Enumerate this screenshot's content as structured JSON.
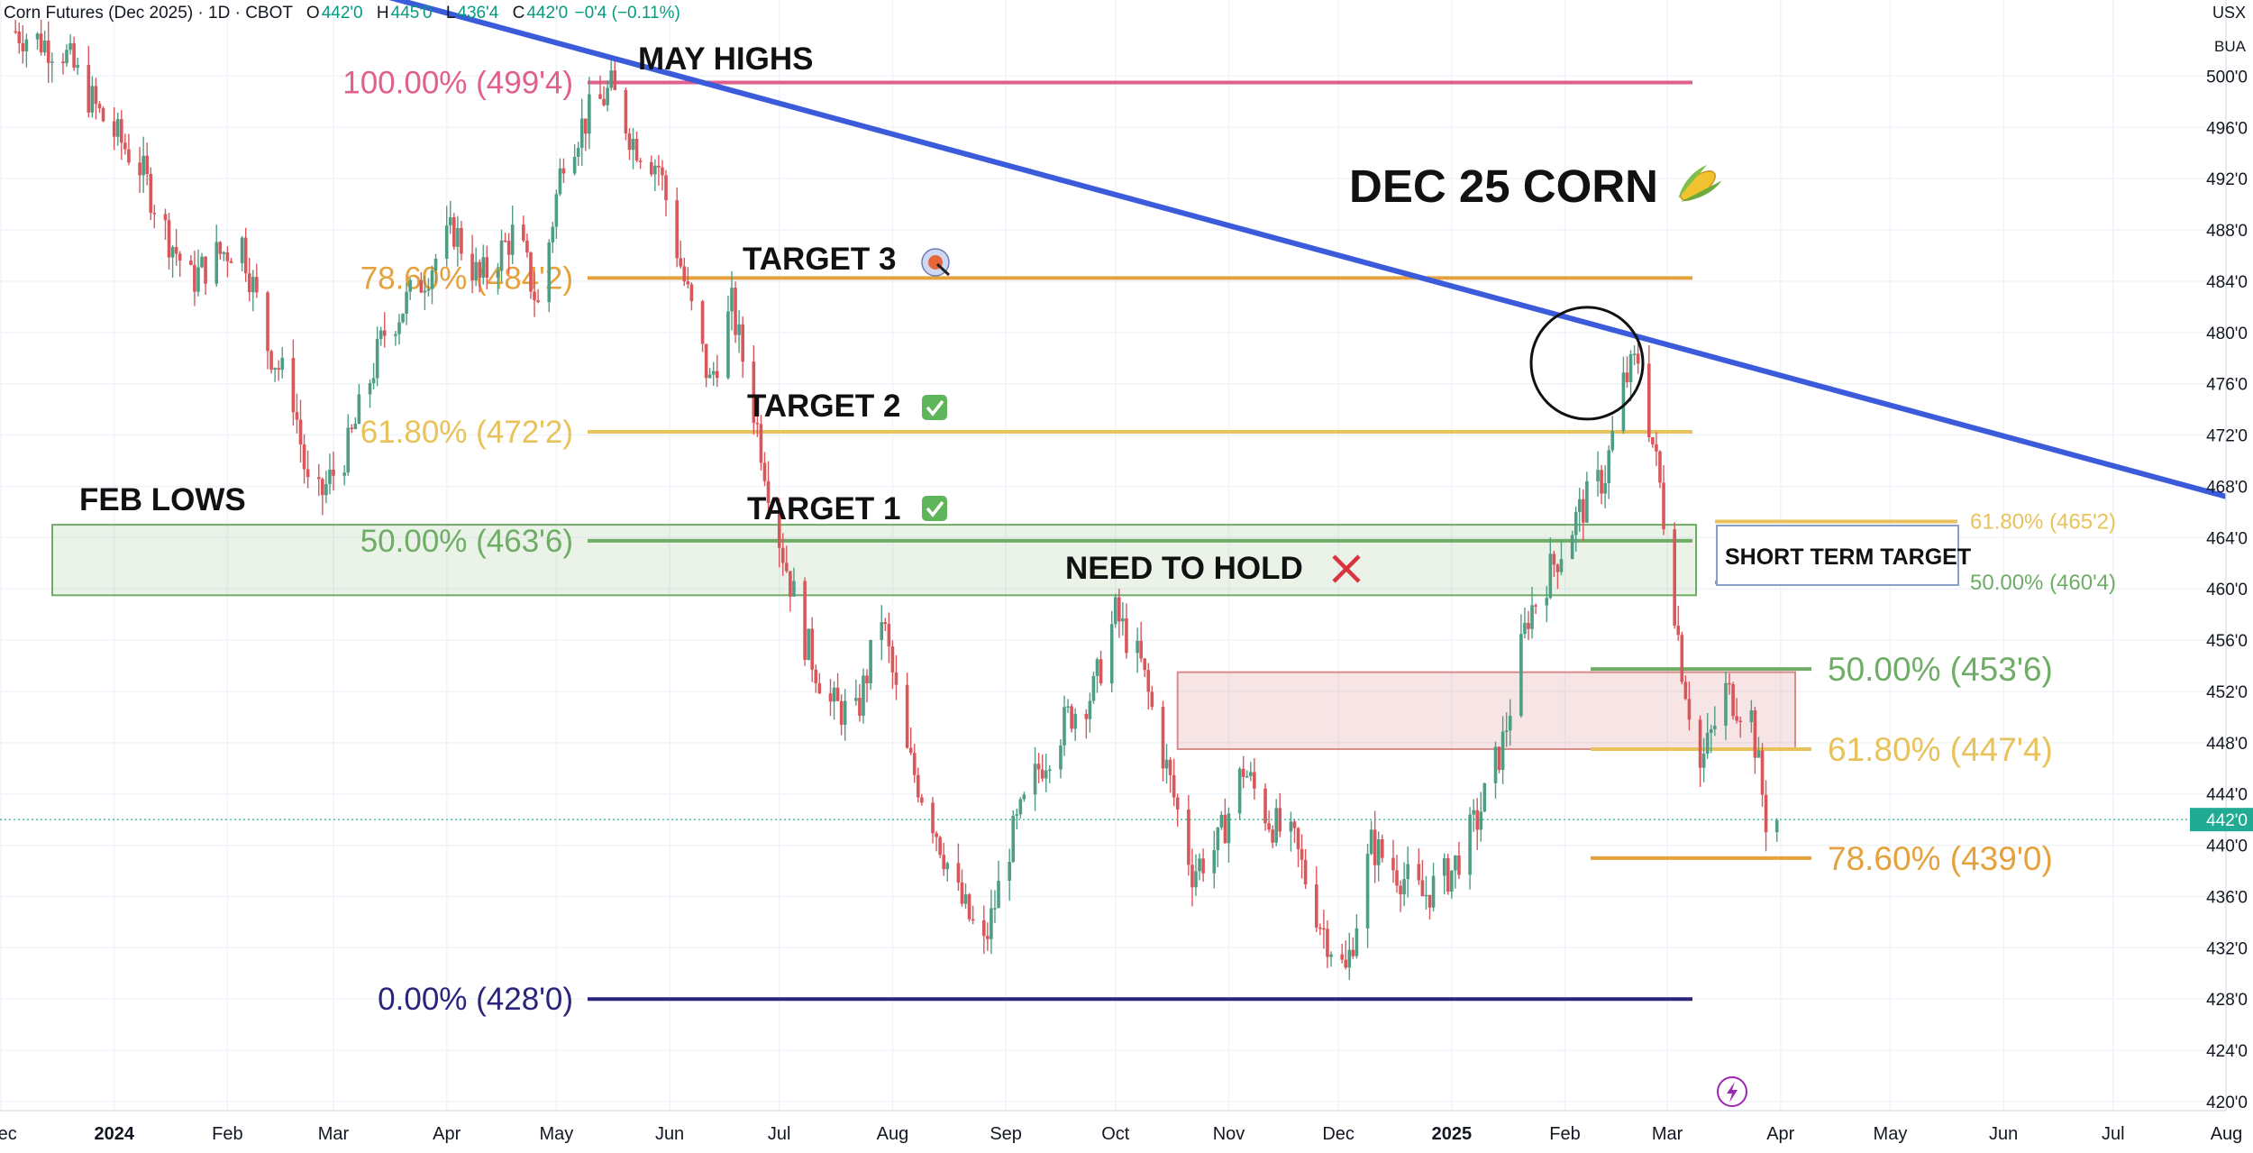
{
  "header": {
    "symbol_line": "Corn Futures (Dec 2025) · 1D · CBOT",
    "open_label": "O",
    "open_value": "442'0",
    "high_label": "H",
    "high_value": "445'0",
    "low_label": "L",
    "low_value": "436'4",
    "close_label": "C",
    "close_value": "442'0",
    "change": "−0'4 (−0.11%)"
  },
  "currency": "USX",
  "unit": "BUA",
  "chart_data": {
    "type": "candlestick",
    "title": "DEC 25 CORN",
    "title_icon": "corn-emoji",
    "ylim": [
      418,
      502
    ],
    "x_range": [
      "2023-12-01",
      "2025-08-10"
    ],
    "y_ticks": [
      "500'0",
      "496'0",
      "492'0",
      "488'0",
      "484'0",
      "480'0",
      "476'0",
      "472'0",
      "468'0",
      "464'0",
      "460'0",
      "456'0",
      "452'0",
      "448'0",
      "444'0",
      "440'0",
      "436'0",
      "432'0",
      "428'0",
      "424'0",
      "420'0"
    ],
    "y_tick_values": [
      500,
      496,
      492,
      488,
      484,
      480,
      476,
      472,
      468,
      464,
      460,
      456,
      452,
      448,
      444,
      440,
      436,
      432,
      428,
      424,
      420
    ],
    "x_ticks": [
      {
        "label": "Dec",
        "date": "2023-12-01",
        "bold": false
      },
      {
        "label": "2024",
        "date": "2024-01-01",
        "bold": true
      },
      {
        "label": "Feb",
        "date": "2024-02-01",
        "bold": false
      },
      {
        "label": "Mar",
        "date": "2024-03-01",
        "bold": false
      },
      {
        "label": "Apr",
        "date": "2024-04-01",
        "bold": false
      },
      {
        "label": "May",
        "date": "2024-05-01",
        "bold": false
      },
      {
        "label": "Jun",
        "date": "2024-06-01",
        "bold": false
      },
      {
        "label": "Jul",
        "date": "2024-07-01",
        "bold": false
      },
      {
        "label": "Aug",
        "date": "2024-08-01",
        "bold": false
      },
      {
        "label": "Sep",
        "date": "2024-09-01",
        "bold": false
      },
      {
        "label": "Oct",
        "date": "2024-10-01",
        "bold": false
      },
      {
        "label": "Nov",
        "date": "2024-11-01",
        "bold": false
      },
      {
        "label": "Dec",
        "date": "2024-12-01",
        "bold": false
      },
      {
        "label": "2025",
        "date": "2025-01-01",
        "bold": true
      },
      {
        "label": "Feb",
        "date": "2025-02-01",
        "bold": false
      },
      {
        "label": "Mar",
        "date": "2025-03-01",
        "bold": false
      },
      {
        "label": "Apr",
        "date": "2025-04-01",
        "bold": false
      },
      {
        "label": "May",
        "date": "2025-05-01",
        "bold": false
      },
      {
        "label": "Jun",
        "date": "2025-06-01",
        "bold": false
      },
      {
        "label": "Jul",
        "date": "2025-07-01",
        "bold": false
      },
      {
        "label": "Aug",
        "date": "2025-08-01",
        "bold": false
      }
    ],
    "last_price": {
      "label": "442'0",
      "value": 442,
      "color": "#22ab94"
    },
    "price_path": [
      [
        "2023-12-05",
        503.5
      ],
      [
        "2023-12-18",
        502
      ],
      [
        "2023-12-28",
        497
      ],
      [
        "2024-01-08",
        493
      ],
      [
        "2024-01-15",
        488
      ],
      [
        "2024-01-22",
        484
      ],
      [
        "2024-01-29",
        486
      ],
      [
        "2024-02-05",
        487
      ],
      [
        "2024-02-12",
        479
      ],
      [
        "2024-02-19",
        475
      ],
      [
        "2024-02-24",
        466
      ],
      [
        "2024-03-05",
        471
      ],
      [
        "2024-03-15",
        480
      ],
      [
        "2024-03-25",
        484
      ],
      [
        "2024-04-03",
        488
      ],
      [
        "2024-04-10",
        484
      ],
      [
        "2024-04-20",
        488
      ],
      [
        "2024-04-26",
        482
      ],
      [
        "2024-05-03",
        494
      ],
      [
        "2024-05-10",
        497
      ],
      [
        "2024-05-16",
        499
      ],
      [
        "2024-05-22",
        495
      ],
      [
        "2024-05-29",
        493
      ],
      [
        "2024-06-05",
        484
      ],
      [
        "2024-06-12",
        476
      ],
      [
        "2024-06-18",
        482
      ],
      [
        "2024-06-24",
        474
      ],
      [
        "2024-07-01",
        464
      ],
      [
        "2024-07-08",
        456
      ],
      [
        "2024-07-15",
        451
      ],
      [
        "2024-07-22",
        450
      ],
      [
        "2024-07-29",
        458
      ],
      [
        "2024-08-05",
        447
      ],
      [
        "2024-08-12",
        442
      ],
      [
        "2024-08-19",
        436
      ],
      [
        "2024-08-26",
        432
      ],
      [
        "2024-09-02",
        440
      ],
      [
        "2024-09-10",
        446
      ],
      [
        "2024-09-18",
        450
      ],
      [
        "2024-09-25",
        452
      ],
      [
        "2024-10-01",
        458
      ],
      [
        "2024-10-08",
        454
      ],
      [
        "2024-10-15",
        446
      ],
      [
        "2024-10-22",
        438
      ],
      [
        "2024-10-29",
        440
      ],
      [
        "2024-11-05",
        446
      ],
      [
        "2024-11-12",
        442
      ],
      [
        "2024-11-19",
        440
      ],
      [
        "2024-11-26",
        434
      ],
      [
        "2024-12-03",
        430
      ],
      [
        "2024-12-10",
        440
      ],
      [
        "2024-12-17",
        438
      ],
      [
        "2024-12-24",
        436
      ],
      [
        "2025-01-01",
        438
      ],
      [
        "2025-01-08",
        442
      ],
      [
        "2025-01-15",
        448
      ],
      [
        "2025-01-22",
        458
      ],
      [
        "2025-01-29",
        462
      ],
      [
        "2025-02-05",
        466
      ],
      [
        "2025-02-12",
        469
      ],
      [
        "2025-02-17",
        476
      ],
      [
        "2025-02-21",
        478
      ],
      [
        "2025-02-27",
        468
      ],
      [
        "2025-03-05",
        454
      ],
      [
        "2025-03-10",
        446
      ],
      [
        "2025-03-17",
        452
      ],
      [
        "2025-03-24",
        450
      ],
      [
        "2025-03-28",
        442
      ],
      [
        "2025-03-31",
        442
      ]
    ],
    "levels": [
      {
        "label": "100.00% (499'4)",
        "value": 499.5,
        "color": "#e05f8d",
        "label_side": "left"
      },
      {
        "label": "78.60% (484'2)",
        "value": 484.25,
        "color": "#e5a23c",
        "label_side": "left"
      },
      {
        "label": "61.80% (472'2)",
        "value": 472.25,
        "color": "#e8c25a",
        "label_side": "left"
      },
      {
        "label": "50.00% (463'6)",
        "value": 463.75,
        "color": "#6fad66",
        "label_side": "left"
      },
      {
        "label": "0.00% (428'0)",
        "value": 428.0,
        "color": "#2a257a",
        "label_side": "left"
      },
      {
        "label": "50.00% (453'6)",
        "value": 453.75,
        "color": "#6fad66",
        "label_side": "right"
      },
      {
        "label": "61.80% (447'4)",
        "value": 447.5,
        "color": "#e8c25a",
        "label_side": "right"
      },
      {
        "label": "78.60% (439'0)",
        "value": 439.0,
        "color": "#e5a23c",
        "label_side": "right"
      },
      {
        "label": "61.80% (465'2)",
        "value": 465.25,
        "color": "#e8c25a",
        "label_side": "box"
      },
      {
        "label": "50.00% (460'4)",
        "value": 460.5,
        "color": "#6fad66",
        "label_side": "box"
      }
    ],
    "trendline": {
      "color": "#3b5bdb",
      "points": [
        [
          "2024-01-20",
          510.5
        ],
        [
          "2025-08-10",
          466.5
        ]
      ]
    },
    "zones": [
      {
        "name": "feb-lows-zone",
        "from": "2023-12-01",
        "to": "2025-02-28",
        "top": 465.0,
        "bottom": 459.5,
        "color": "#6fad66"
      },
      {
        "name": "resistance-zone",
        "from": "2024-10-18",
        "to": "2025-04-05",
        "top": 453.5,
        "bottom": 447.5,
        "color": "#d98a8a"
      }
    ],
    "annotations": [
      {
        "text": "MAY HIGHS",
        "kind": "label"
      },
      {
        "text": "FEB LOWS",
        "kind": "label"
      },
      {
        "text": "TARGET 3",
        "kind": "label",
        "icon": "target-icon"
      },
      {
        "text": "TARGET 2",
        "kind": "label",
        "icon": "check-icon"
      },
      {
        "text": "TARGET 1",
        "kind": "label",
        "icon": "check-icon"
      },
      {
        "text": "NEED TO HOLD",
        "kind": "label",
        "icon": "cross-icon"
      },
      {
        "text": "SHORT TERM TARGET",
        "kind": "box-label"
      }
    ],
    "grid": true
  }
}
